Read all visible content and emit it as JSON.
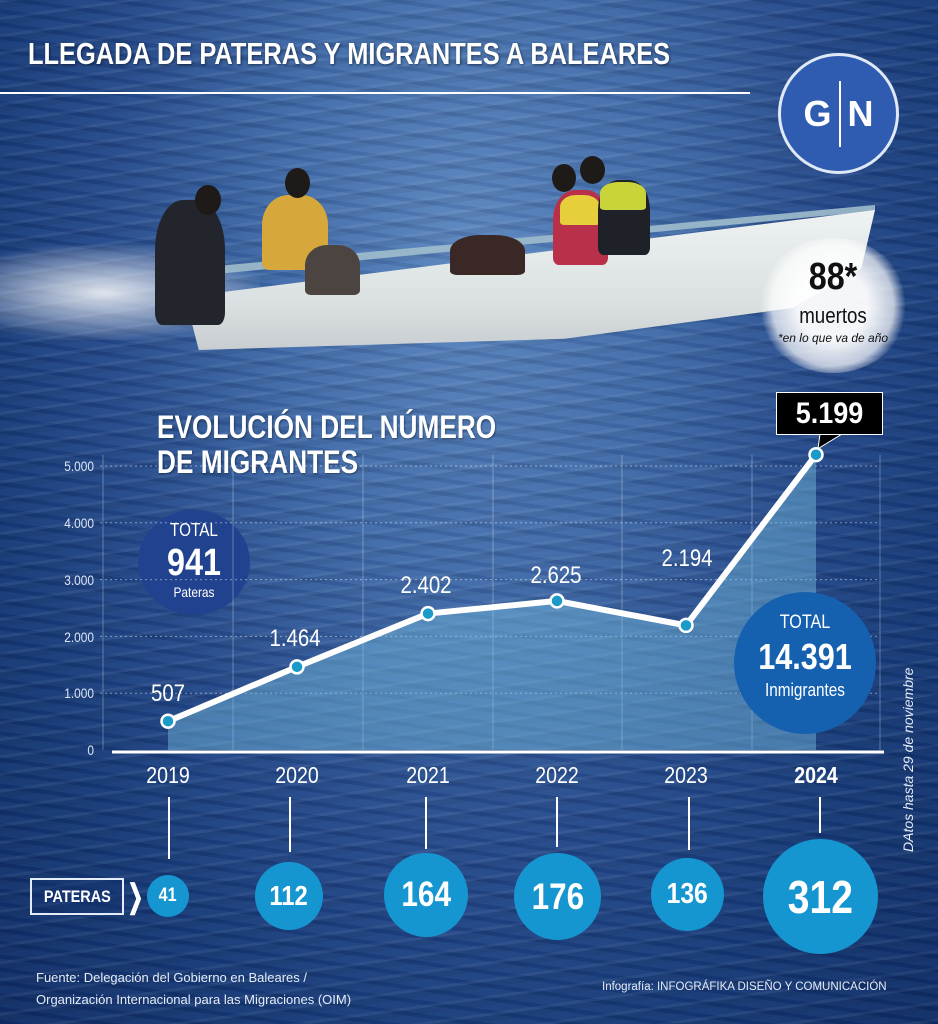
{
  "header": {
    "title": "LLEGADA DE PATERAS Y MIGRANTES A BALEARES",
    "logo": {
      "left": "G",
      "right": "N"
    }
  },
  "deaths": {
    "value": "88*",
    "label": "muertos",
    "note": "*en lo que va de año"
  },
  "chart_title": {
    "line1": "EVOLUCIÓN DEL NÚMERO",
    "line2": "DE MIGRANTES"
  },
  "totals": {
    "pateras": {
      "label": "TOTAL",
      "value": "941",
      "unit": "Pateras"
    },
    "immigrants": {
      "label": "TOTAL",
      "value": "14.391",
      "unit": "Inmigrantes"
    }
  },
  "y_ticks": [
    "5.000",
    "4.000",
    "3.000",
    "2.000",
    "1.000",
    "0"
  ],
  "years": [
    "2019",
    "2020",
    "2021",
    "2022",
    "2023",
    "2024"
  ],
  "migrant_labels": [
    "507",
    "1.464",
    "2.402",
    "2.625",
    "2.194",
    "5.199"
  ],
  "pateras_row": {
    "label": "PATERAS",
    "chevron": "❯",
    "values": [
      "41",
      "112",
      "164",
      "176",
      "136",
      "312"
    ]
  },
  "side_note": "DAtos hasta 29 de noviembre",
  "footer": {
    "source_line1": "Fuente: Delegación del Gobierno en Baleares /",
    "source_line2": "Organización Internacional para las Migraciones (OIM)",
    "credit": "Infografía: INFOGRÁFIKA DISEÑO Y COMUNICACIÓN"
  },
  "colors": {
    "accent_cyan": "#1596d0",
    "point_fill": "#1a9ac9",
    "logo_blue": "#2f5cb0",
    "total_pateras_bg": "#21438f",
    "total_immigrants_bg": "#1561b0",
    "callout_bg": "#000000"
  },
  "chart_data": [
    {
      "type": "area",
      "title": "EVOLUCIÓN DEL NÚMERO DE MIGRANTES",
      "categories": [
        "2019",
        "2020",
        "2021",
        "2022",
        "2023",
        "2024"
      ],
      "series": [
        {
          "name": "Migrantes",
          "values": [
            507,
            1464,
            2402,
            2625,
            2194,
            5199
          ]
        }
      ],
      "xlabel": "",
      "ylabel": "",
      "ylim": [
        0,
        5000
      ],
      "yticks": [
        0,
        1000,
        2000,
        3000,
        4000,
        5000
      ],
      "grid": true,
      "annotations": [
        "TOTAL 941 Pateras",
        "TOTAL 14.391 Inmigrantes",
        "DAtos hasta 29 de noviembre"
      ]
    },
    {
      "type": "bubble",
      "title": "PATERAS",
      "categories": [
        "2019",
        "2020",
        "2021",
        "2022",
        "2023",
        "2024"
      ],
      "values": [
        41,
        112,
        164,
        176,
        136,
        312
      ]
    }
  ]
}
